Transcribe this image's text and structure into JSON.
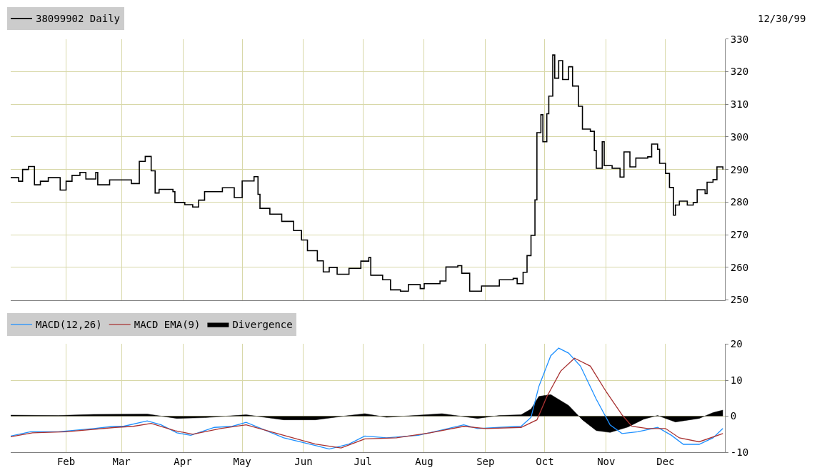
{
  "chart_data": [
    {
      "type": "step",
      "annotations": [
        "12/30/99"
      ],
      "legend": "top left",
      "grid": true,
      "tick_labels": "y",
      "xlim": [
        "--01-04",
        "--12-31"
      ],
      "xticks": [
        {
          "value": "--02-01",
          "label": "Feb"
        },
        {
          "value": "--03-01",
          "label": "Mar"
        },
        {
          "value": "--04-01",
          "label": "Apr"
        },
        {
          "value": "--05-01",
          "label": "May"
        },
        {
          "value": "--06-01",
          "label": "Jun"
        },
        {
          "value": "--07-01",
          "label": "Jul"
        },
        {
          "value": "--08-01",
          "label": "Aug"
        },
        {
          "value": "--09-01",
          "label": "Sep"
        },
        {
          "value": "--10-01",
          "label": "Oct"
        },
        {
          "value": "--11-01",
          "label": "Nov"
        },
        {
          "value": "--12-01",
          "label": "Dec"
        }
      ],
      "ylim": [
        250,
        330
      ],
      "yticks": [
        250,
        260,
        270,
        280,
        290,
        300,
        310,
        320,
        330
      ],
      "x": [
        "--01-04",
        "--01-08",
        "--01-10",
        "--01-13",
        "--01-16",
        "--01-19",
        "--01-23",
        "--01-29",
        "--02-01",
        "--02-04",
        "--02-08",
        "--02-11",
        "--02-16",
        "--02-17",
        "--02-23",
        "--03-06",
        "--03-10",
        "--03-13",
        "--03-16",
        "--03-18",
        "--03-20",
        "--03-27",
        "--03-28",
        "--04-02",
        "--04-06",
        "--04-09",
        "--04-12",
        "--04-21",
        "--04-27",
        "--05-01",
        "--05-07",
        "--05-09",
        "--05-10",
        "--05-15",
        "--05-21",
        "--05-27",
        "--05-31",
        "--06-03",
        "--06-08",
        "--06-11",
        "--06-14",
        "--06-18",
        "--06-24",
        "--06-30",
        "--07-04",
        "--07-05",
        "--07-11",
        "--07-15",
        "--07-20",
        "--07-24",
        "--07-30",
        "--08-01",
        "--08-09",
        "--08-12",
        "--08-18",
        "--08-20",
        "--08-24",
        "--08-30",
        "--09-03",
        "--09-08",
        "--09-15",
        "--09-17",
        "--09-20",
        "--09-22",
        "--09-24",
        "--09-26",
        "--09-27",
        "--09-29",
        "--09-30",
        "--10-02",
        "--10-03",
        "--10-05",
        "--10-06",
        "--10-08",
        "--10-10",
        "--10-13",
        "--10-15",
        "--10-18",
        "--10-20",
        "--10-24",
        "--10-26",
        "--10-27",
        "--10-30",
        "--10-31",
        "--11-04",
        "--11-08",
        "--11-10",
        "--11-13",
        "--11-16",
        "--11-22",
        "--11-24",
        "--11-27",
        "--11-28",
        "--12-01",
        "--12-03",
        "--12-05",
        "--12-06",
        "--12-08",
        "--12-12",
        "--12-15",
        "--12-17",
        "--12-21",
        "--12-22",
        "--12-25",
        "--12-27",
        "--12-30"
      ],
      "series": [
        {
          "name": "38099902 Daily",
          "color": "#000000",
          "values": [
            287.5,
            286.4,
            290,
            290.9,
            285.3,
            286.4,
            287.5,
            283.7,
            286.4,
            288.2,
            289.1,
            287.1,
            289.1,
            285.3,
            286.8,
            285.7,
            292.5,
            294,
            289.6,
            282.8,
            283.9,
            283.2,
            279.9,
            279.2,
            278.5,
            280.6,
            283.2,
            284.4,
            281.4,
            286.5,
            287.8,
            282.4,
            278.1,
            276.3,
            274.1,
            271.3,
            268.4,
            265.1,
            262,
            258.6,
            260,
            257.9,
            259.7,
            261.9,
            263,
            257.6,
            256.2,
            253.1,
            252.7,
            254.7,
            253.5,
            255,
            255.8,
            260.1,
            260.5,
            258.2,
            252.7,
            254.3,
            254.3,
            256.2,
            256.6,
            255,
            258.5,
            263.6,
            269.8,
            280.7,
            301.3,
            306.8,
            298.5,
            307.1,
            312.5,
            325.1,
            318,
            323.4,
            317.6,
            321.5,
            315.6,
            309.4,
            302.4,
            301.7,
            295.8,
            290.4,
            298.5,
            291.2,
            290.4,
            287.7,
            295.4,
            290.8,
            293.5,
            293.9,
            297.8,
            296.2,
            291.9,
            288.8,
            284.5,
            276,
            279.1,
            280.3,
            279.1,
            279.9,
            283.8,
            282.6,
            286.1,
            286.9,
            290.8,
            290
          ]
        }
      ]
    },
    {
      "type": "line",
      "legend": "top left",
      "grid": true,
      "xlim": [
        "--01-04",
        "--12-31"
      ],
      "xticks": [
        {
          "value": "--02-01",
          "label": "Feb"
        },
        {
          "value": "--03-01",
          "label": "Mar"
        },
        {
          "value": "--04-01",
          "label": "Apr"
        },
        {
          "value": "--05-01",
          "label": "May"
        },
        {
          "value": "--06-01",
          "label": "Jun"
        },
        {
          "value": "--07-01",
          "label": "Jul"
        },
        {
          "value": "--08-01",
          "label": "Aug"
        },
        {
          "value": "--09-01",
          "label": "Sep"
        },
        {
          "value": "--10-01",
          "label": "Oct"
        },
        {
          "value": "--11-01",
          "label": "Nov"
        },
        {
          "value": "--12-01",
          "label": "Dec"
        }
      ],
      "ylim": [
        -10,
        20
      ],
      "yticks": [
        -10,
        0,
        10,
        20
      ],
      "series": [
        {
          "name": "MACD(12,26)",
          "color": "#1e90ff",
          "x": [
            "--01-04",
            "--01-14",
            "--01-28",
            "--02-15",
            "--02-25",
            "--03-02",
            "--03-14",
            "--03-21",
            "--03-29",
            "--04-05",
            "--04-17",
            "--04-26",
            "--05-03",
            "--05-22",
            "--06-07",
            "--06-14",
            "--06-24",
            "--07-02",
            "--07-13",
            "--07-29",
            "--08-10",
            "--08-21",
            "--08-28",
            "--09-08",
            "--09-19",
            "--09-24",
            "--09-28",
            "--10-04",
            "--10-08",
            "--10-13",
            "--10-19",
            "--10-27",
            "--11-03",
            "--11-09",
            "--11-17",
            "--11-27",
            "--12-04",
            "--12-10",
            "--12-18",
            "--12-25",
            "--12-30"
          ],
          "values": [
            -5.5,
            -4.3,
            -4.3,
            -3.4,
            -2.8,
            -2.8,
            -1.3,
            -2.4,
            -4.6,
            -5.3,
            -3.1,
            -2.8,
            -1.7,
            -6,
            -8.1,
            -9.1,
            -7.7,
            -5.5,
            -6,
            -5.3,
            -3.8,
            -2.4,
            -3.4,
            -3.1,
            -2.8,
            -0.3,
            8.3,
            16.8,
            18.9,
            17.5,
            13.9,
            4.7,
            -2.4,
            -4.8,
            -4.3,
            -3.1,
            -5.3,
            -7.8,
            -7.8,
            -6,
            -3.4
          ]
        },
        {
          "name": "MACD EMA(9)",
          "color": "#a83232",
          "x": [
            "--01-04",
            "--01-15",
            "--02-01",
            "--02-26",
            "--03-07",
            "--03-16",
            "--03-28",
            "--04-06",
            "--04-20",
            "--05-03",
            "--05-22",
            "--06-07",
            "--06-20",
            "--07-02",
            "--07-18",
            "--08-04",
            "--08-21",
            "--09-01",
            "--09-19",
            "--09-27",
            "--10-02",
            "--10-09",
            "--10-16",
            "--10-24",
            "--11-01",
            "--11-09",
            "--11-14",
            "--11-22",
            "--12-01",
            "--12-08",
            "--12-18",
            "--12-30"
          ],
          "values": [
            -5.7,
            -4.6,
            -4.3,
            -3.1,
            -2.8,
            -2,
            -4,
            -5,
            -3.4,
            -2.4,
            -5.3,
            -7.7,
            -8.8,
            -6.3,
            -6,
            -4.6,
            -2.8,
            -3.4,
            -3.1,
            -1,
            5.4,
            12.5,
            16.1,
            13.9,
            6.8,
            0.4,
            -2.8,
            -3.4,
            -3.4,
            -6,
            -7.1,
            -4.8
          ]
        },
        {
          "name": "Divergence",
          "type": "area",
          "color": "#000000",
          "x": [
            "--01-04",
            "--01-28",
            "--02-15",
            "--03-14",
            "--03-29",
            "--04-12",
            "--05-03",
            "--05-22",
            "--06-07",
            "--06-24",
            "--07-02",
            "--07-13",
            "--08-10",
            "--08-28",
            "--09-08",
            "--09-19",
            "--09-24",
            "--09-28",
            "--10-04",
            "--10-13",
            "--10-20",
            "--10-27",
            "--11-03",
            "--11-12",
            "--11-20",
            "--11-27",
            "--12-06",
            "--12-18",
            "--12-25",
            "--12-30"
          ],
          "values": [
            0.3,
            0.2,
            0.5,
            0.6,
            -0.6,
            -0.4,
            0.4,
            -1,
            -1,
            0.2,
            0.7,
            -0.3,
            0.7,
            -0.6,
            0.2,
            0.4,
            2,
            5.5,
            6,
            3,
            -1,
            -4,
            -4.5,
            -3,
            -0.8,
            0.2,
            -1.6,
            -0.6,
            1,
            1.7
          ]
        }
      ]
    }
  ]
}
